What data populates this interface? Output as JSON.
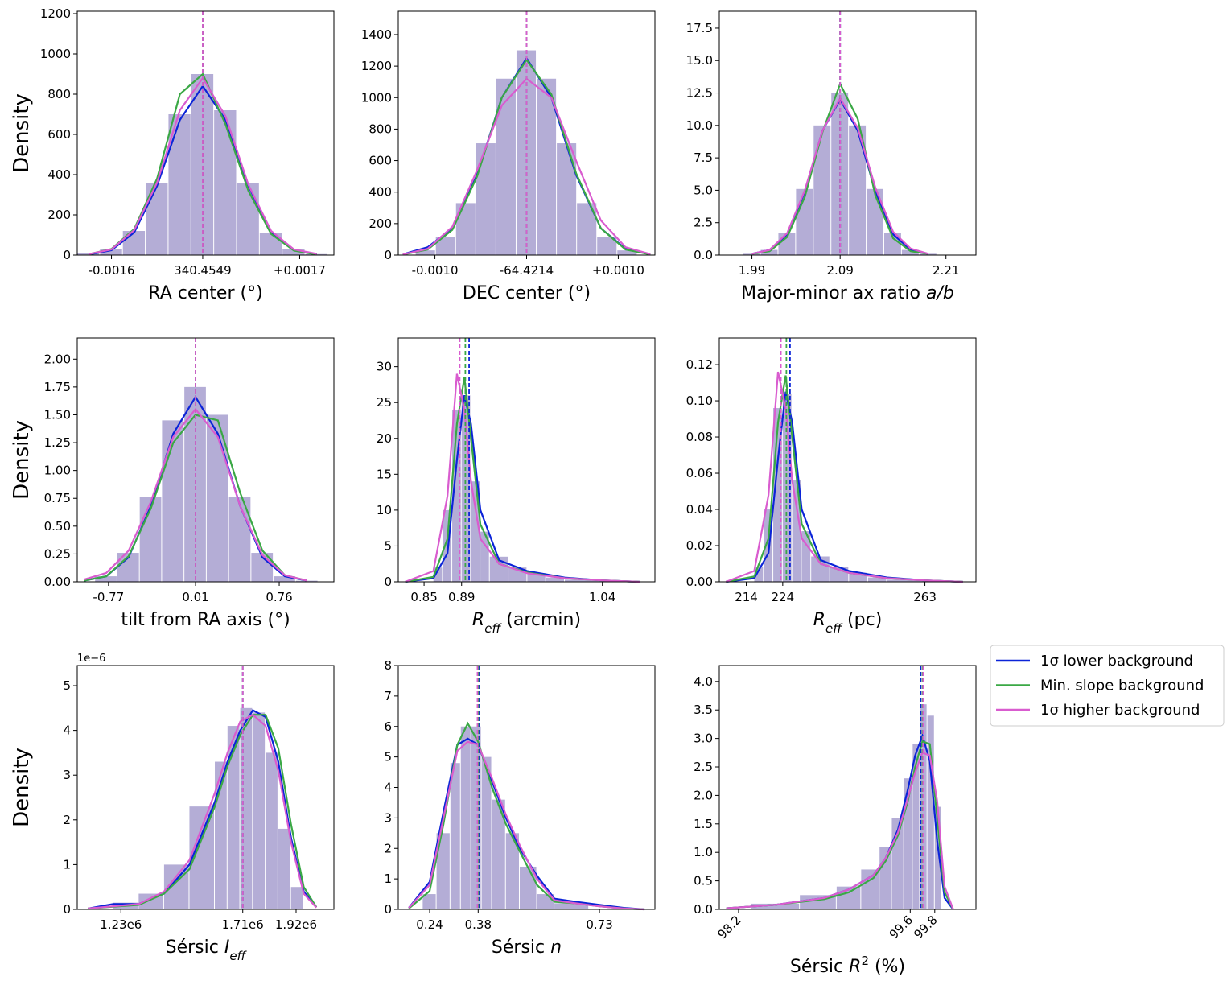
{
  "legend": {
    "position": "outside right",
    "entries": [
      {
        "name": "1σ lower background",
        "color": "#0b24d8"
      },
      {
        "name": "Min. slope background",
        "color": "#3aa845"
      },
      {
        "name": "1σ higher background",
        "color": "#d95ccf"
      }
    ]
  },
  "hist_color": "#a79fcf",
  "chart_data": [
    {
      "type": "histogram_kde",
      "ylabel": "Density",
      "xlabel": [
        {
          "text": "RA center (°)"
        }
      ],
      "xlim": [
        340.4527,
        340.4572
      ],
      "xticks": [
        {
          "value": 340.4533,
          "label": "-0.0016"
        },
        340.4549,
        {
          "value": 340.4566,
          "label": "+0.0017"
        }
      ],
      "ylim": [
        0,
        1212
      ],
      "yticks": [
        0,
        200,
        400,
        600,
        800,
        1000,
        1200
      ],
      "x": [
        340.4529,
        340.4533,
        340.4537,
        340.4541,
        340.4545,
        340.4549,
        340.4553,
        340.4557,
        340.4561,
        340.4565,
        340.4569
      ],
      "kde": [
        [
          3,
          24,
          113,
          344,
          672,
          840,
          672,
          344,
          113,
          24,
          3
        ],
        [
          4,
          30,
          130,
          380,
          800,
          900,
          650,
          320,
          105,
          22,
          3
        ],
        [
          5,
          28,
          125,
          360,
          720,
          880,
          690,
          350,
          120,
          28,
          6
        ]
      ],
      "medians": [
        340.4549,
        340.4549,
        340.4549
      ],
      "hist": {
        "bins": [
          340.4527,
          340.4531,
          340.4535,
          340.4539,
          340.4543,
          340.4547,
          340.4551,
          340.4555,
          340.4559,
          340.4563,
          340.4567,
          340.4571
        ],
        "counts": [
          10,
          30,
          120,
          360,
          700,
          900,
          720,
          360,
          110,
          30,
          5
        ]
      }
    },
    {
      "type": "histogram_kde",
      "xlabel": [
        {
          "text": "DEC center (°)"
        }
      ],
      "xlim": [
        -64.4228,
        -64.42
      ],
      "xticks": [
        {
          "value": -64.4224,
          "label": "-0.0010"
        },
        -64.4214,
        {
          "value": -64.4204,
          "label": "+0.0010"
        }
      ],
      "ylim": [
        0,
        1548
      ],
      "yticks": [
        0,
        200,
        400,
        600,
        800,
        1000,
        1200,
        1400
      ],
      "x": [
        -64.42275,
        -64.42248,
        -64.42221,
        -64.42194,
        -64.42167,
        -64.4214,
        -64.42113,
        -64.42086,
        -64.42059,
        -64.42032,
        -64.42005
      ],
      "kde": [
        [
          5,
          50,
          170,
          510,
          1000,
          1250,
          1000,
          510,
          170,
          40,
          5
        ],
        [
          3,
          35,
          160,
          500,
          1000,
          1240,
          1020,
          520,
          170,
          35,
          4
        ],
        [
          4,
          40,
          180,
          540,
          950,
          1120,
          1000,
          600,
          220,
          50,
          6
        ]
      ],
      "medians": [
        -64.4214,
        -64.4214,
        -64.4214
      ],
      "hist": {
        "bins": [
          -64.42261,
          -64.42239,
          -64.42217,
          -64.42195,
          -64.42173,
          -64.42151,
          -64.42129,
          -64.42107,
          -64.42085,
          -64.42063,
          -64.42041,
          -64.42019
        ],
        "counts": [
          30,
          115,
          330,
          710,
          1120,
          1300,
          1120,
          710,
          330,
          115,
          30
        ]
      }
    },
    {
      "type": "histogram_kde",
      "xlabel": [
        {
          "text": "Major-minor ax ratio "
        },
        {
          "text": "a/b",
          "style": "italic"
        }
      ],
      "xlim": [
        1.953,
        2.244
      ],
      "xticks": [
        1.99,
        2.09,
        2.21
      ],
      "ylim": [
        0,
        18.8
      ],
      "yticks": [
        {
          "value": 0,
          "label": "0.0"
        },
        2.5,
        {
          "value": 5,
          "label": "5.0"
        },
        7.5,
        {
          "value": 10,
          "label": "10.0"
        },
        12.5,
        {
          "value": 15,
          "label": "15.0"
        },
        17.5
      ],
      "x": [
        1.99,
        2.01,
        2.03,
        2.05,
        2.07,
        2.09,
        2.11,
        2.13,
        2.15,
        2.17,
        2.19
      ],
      "kde": [
        [
          0.1,
          0.4,
          1.6,
          4.9,
          9.6,
          12,
          9.6,
          4.9,
          1.6,
          0.4,
          0.1
        ],
        [
          0.1,
          0.3,
          1.4,
          4.5,
          9.5,
          13.2,
          10.5,
          4.6,
          1.3,
          0.3,
          0.1
        ],
        [
          0.1,
          0.4,
          1.7,
          5,
          9.6,
          12.1,
          9.8,
          5.2,
          1.8,
          0.5,
          0.1
        ]
      ],
      "medians": [
        2.09,
        2.09,
        2.09
      ],
      "hist": {
        "bins": [
          1.98,
          2.0,
          2.02,
          2.04,
          2.06,
          2.08,
          2.1,
          2.12,
          2.14,
          2.16,
          2.18,
          2.2
        ],
        "counts": [
          0.1,
          0.4,
          1.7,
          5.1,
          10,
          12.5,
          10,
          5.1,
          1.7,
          0.4,
          0.1
        ]
      }
    },
    {
      "type": "histogram_kde",
      "ylabel": "Density",
      "xlabel": [
        {
          "text": "tilt from RA axis (°)"
        }
      ],
      "xlim": [
        -1.05,
        1.25
      ],
      "xticks": [
        -0.77,
        0.01,
        0.76
      ],
      "ylim": [
        0,
        2.19
      ],
      "yticks": [
        {
          "value": 0,
          "label": "0.00"
        },
        0.25,
        {
          "value": 0.5,
          "label": "0.50"
        },
        0.75,
        {
          "value": 1,
          "label": "1.00"
        },
        1.25,
        {
          "value": 1.5,
          "label": "1.50"
        },
        1.75,
        {
          "value": 2,
          "label": "2.00"
        }
      ],
      "x": [
        -0.99,
        -0.79,
        -0.59,
        -0.39,
        -0.19,
        0.01,
        0.21,
        0.41,
        0.61,
        0.81,
        1.01
      ],
      "kde": [
        [
          0.01,
          0.05,
          0.22,
          0.68,
          1.33,
          1.66,
          1.33,
          0.68,
          0.22,
          0.05,
          0.01
        ],
        [
          0.01,
          0.05,
          0.23,
          0.66,
          1.25,
          1.5,
          1.45,
          0.8,
          0.28,
          0.06,
          0.01
        ],
        [
          0.02,
          0.08,
          0.28,
          0.72,
          1.3,
          1.55,
          1.3,
          0.68,
          0.24,
          0.06,
          0.01
        ]
      ],
      "medians": [
        0.01,
        0.01,
        0.01
      ],
      "hist": {
        "bins": [
          -0.89,
          -0.69,
          -0.49,
          -0.29,
          -0.09,
          0.11,
          0.31,
          0.51,
          0.71,
          0.91,
          1.11
        ],
        "counts": [
          0.05,
          0.26,
          0.76,
          1.45,
          1.75,
          1.5,
          0.76,
          0.26,
          0.05,
          0.01
        ]
      }
    },
    {
      "type": "histogram_kde",
      "xlabel": [
        {
          "text": "R",
          "style": "italic"
        },
        {
          "text": "eff",
          "style": "sub"
        },
        {
          "text": " (arcmin)"
        }
      ],
      "xlim": [
        0.8225,
        1.096
      ],
      "xticks": [
        0.85,
        0.89,
        1.04
      ],
      "ylim": [
        0,
        34
      ],
      "yticks": [
        0,
        5,
        10,
        15,
        20,
        25,
        30
      ],
      "x": [
        0.83,
        0.86,
        0.875,
        0.885,
        0.893,
        0.9,
        0.91,
        0.93,
        0.96,
        1.0,
        1.04,
        1.08
      ],
      "kde": [
        [
          0,
          0.5,
          4,
          17,
          26,
          22,
          10,
          3,
          1.5,
          0.6,
          0.2,
          0
        ],
        [
          0,
          0.7,
          6,
          22,
          28.5,
          20,
          8,
          2.5,
          1.3,
          0.5,
          0.2,
          0
        ],
        [
          0,
          1.5,
          12,
          29,
          24,
          14,
          6,
          2.5,
          1.2,
          0.5,
          0.2,
          0
        ]
      ],
      "medians": [
        0.898,
        0.894,
        0.888
      ],
      "hist": {
        "bins": [
          0.86,
          0.87,
          0.88,
          0.89,
          0.9,
          0.91,
          0.92,
          0.94,
          0.96,
          0.98,
          1.0,
          1.04
        ],
        "counts": [
          2,
          10,
          24,
          26,
          14,
          7,
          3.5,
          2,
          1.2,
          0.6,
          0.3
        ]
      }
    },
    {
      "type": "histogram_kde",
      "xlabel": [
        {
          "text": "R",
          "style": "italic"
        },
        {
          "text": "eff",
          "style": "sub"
        },
        {
          "text": " (pc)"
        }
      ],
      "xlim": [
        206.6,
        277
      ],
      "xticks": [
        214,
        224,
        263
      ],
      "ylim": [
        0,
        0.1347
      ],
      "yticks": [
        {
          "value": 0,
          "label": "0.00"
        },
        0.02,
        0.04,
        0.06,
        0.08,
        {
          "value": 0.1,
          "label": "0.10"
        },
        0.12
      ],
      "x": [
        208.4,
        216.2,
        220.1,
        222.7,
        224.8,
        226.6,
        229.2,
        234.4,
        242.2,
        252.6,
        263,
        273.4
      ],
      "kde": [
        [
          0,
          0.002,
          0.016,
          0.068,
          0.105,
          0.088,
          0.04,
          0.012,
          0.006,
          0.0024,
          0.0008,
          0
        ],
        [
          0,
          0.003,
          0.024,
          0.088,
          0.114,
          0.08,
          0.032,
          0.01,
          0.005,
          0.002,
          0.0008,
          0
        ],
        [
          0,
          0.006,
          0.048,
          0.116,
          0.096,
          0.056,
          0.024,
          0.01,
          0.005,
          0.002,
          0.0008,
          0
        ]
      ],
      "medians": [
        226,
        225,
        223.5
      ],
      "hist": {
        "bins": [
          216.2,
          218.8,
          221.4,
          224,
          226.6,
          229.2,
          231.8,
          237,
          242.2,
          247.4,
          252.6,
          263
        ],
        "counts": [
          0.008,
          0.04,
          0.096,
          0.104,
          0.056,
          0.028,
          0.014,
          0.008,
          0.005,
          0.0024,
          0.0012
        ]
      }
    },
    {
      "type": "histogram_kde",
      "ylabel": "Density",
      "y_offset": "1e−6",
      "xlabel": [
        {
          "text": "Sérsic "
        },
        {
          "text": "I",
          "style": "italic"
        },
        {
          "text": "eff",
          "style": "sub"
        }
      ],
      "xlim": [
        1058000,
        2069000
      ],
      "xticks": [
        {
          "value": 1230000,
          "label": "1.23e6"
        },
        {
          "value": 1710000,
          "label": "1.71e6"
        },
        {
          "value": 1920000,
          "label": "1.92e6"
        }
      ],
      "ylim": [
        0,
        5.45
      ],
      "yticks": [
        0,
        1,
        2,
        3,
        4,
        5
      ],
      "x": [
        1100000,
        1200000,
        1300000,
        1400000,
        1500000,
        1600000,
        1650000,
        1700000,
        1750000,
        1800000,
        1850000,
        1900000,
        1950000,
        2000000
      ],
      "kde": [
        [
          0.02,
          0.12,
          0.12,
          0.35,
          1.0,
          2.4,
          3.3,
          4.0,
          4.45,
          4.3,
          3.3,
          1.6,
          0.4,
          0.05
        ],
        [
          0.02,
          0.06,
          0.1,
          0.35,
          0.9,
          2.3,
          3.2,
          3.9,
          4.35,
          4.35,
          3.6,
          1.9,
          0.5,
          0.05
        ],
        [
          0.02,
          0.07,
          0.12,
          0.4,
          1.1,
          2.6,
          3.5,
          4.2,
          4.35,
          4.1,
          3.1,
          1.5,
          0.35,
          0.04
        ]
      ],
      "medians": [
        1710000,
        1710000,
        1710000
      ],
      "hist": {
        "bins": [
          1200000,
          1300000,
          1400000,
          1500000,
          1600000,
          1650000,
          1700000,
          1750000,
          1800000,
          1850000,
          1900000,
          1950000
        ],
        "counts": [
          0.15,
          0.35,
          1.0,
          2.3,
          3.3,
          4.1,
          4.5,
          4.4,
          3.5,
          1.8,
          0.5
        ]
      }
    },
    {
      "type": "histogram_kde",
      "xlabel": [
        {
          "text": "Sérsic "
        },
        {
          "text": "n",
          "style": "italic"
        }
      ],
      "xlim": [
        0.1495,
        0.89
      ],
      "xticks": [
        0.24,
        0.38,
        0.73
      ],
      "ylim": [
        0,
        8
      ],
      "yticks": [
        0,
        1,
        2,
        3,
        4,
        5,
        6,
        7,
        8
      ],
      "x": [
        0.18,
        0.24,
        0.28,
        0.32,
        0.35,
        0.38,
        0.42,
        0.46,
        0.5,
        0.55,
        0.6,
        0.66,
        0.73,
        0.8,
        0.86
      ],
      "kde": [
        [
          0.05,
          0.9,
          3.2,
          5.4,
          5.6,
          5.4,
          4.2,
          3.0,
          2.0,
          1.1,
          0.35,
          0.25,
          0.15,
          0.05,
          0
        ],
        [
          0.03,
          0.6,
          2.8,
          5.4,
          6.1,
          5.5,
          4.0,
          2.8,
          1.9,
          0.8,
          0.25,
          0.2,
          0.1,
          0.03,
          0
        ],
        [
          0.05,
          0.8,
          3.0,
          5.2,
          5.5,
          5.4,
          4.3,
          3.1,
          2.1,
          1.0,
          0.3,
          0.2,
          0.1,
          0.03,
          0
        ]
      ],
      "medians": [
        0.383,
        0.38,
        0.378
      ],
      "hist": {
        "bins": [
          0.22,
          0.26,
          0.3,
          0.33,
          0.36,
          0.39,
          0.42,
          0.46,
          0.5,
          0.55,
          0.6,
          0.7
        ],
        "counts": [
          0.5,
          2.5,
          4.8,
          6,
          6,
          5,
          3.6,
          2.5,
          1.4,
          0.5,
          0.2
        ]
      }
    },
    {
      "type": "histogram_kde",
      "xtick_rotation": 45,
      "xlabel": [
        {
          "text": "Sérsic "
        },
        {
          "text": "R",
          "style": "italic"
        },
        {
          "text": "2",
          "style": "sup"
        },
        {
          "text": " (%)"
        }
      ],
      "xlim": [
        98.043,
        100.136
      ],
      "xticks": [
        98.2,
        99.6,
        99.8
      ],
      "ylim": [
        0,
        4.28
      ],
      "yticks": [
        {
          "value": 0,
          "label": "0.0"
        },
        0.5,
        {
          "value": 1,
          "label": "1.0"
        },
        1.5,
        {
          "value": 2,
          "label": "2.0"
        },
        2.5,
        {
          "value": 3,
          "label": "3.0"
        },
        3.5,
        {
          "value": 4,
          "label": "4.0"
        }
      ],
      "x": [
        98.1,
        98.5,
        98.9,
        99.1,
        99.3,
        99.4,
        99.5,
        99.58,
        99.64,
        99.7,
        99.76,
        99.82,
        99.88,
        99.95
      ],
      "kde": [
        [
          0.02,
          0.08,
          0.2,
          0.35,
          0.6,
          0.9,
          1.4,
          2.1,
          2.7,
          3.05,
          2.6,
          1.2,
          0.2,
          0
        ],
        [
          0.02,
          0.08,
          0.18,
          0.3,
          0.55,
          0.85,
          1.3,
          1.9,
          2.5,
          2.95,
          2.9,
          1.6,
          0.3,
          0
        ],
        [
          0.02,
          0.08,
          0.2,
          0.35,
          0.6,
          0.9,
          1.35,
          1.95,
          2.4,
          2.75,
          2.7,
          1.9,
          0.4,
          0
        ]
      ],
      "medians": [
        99.685,
        99.7,
        99.705
      ],
      "hist": {
        "bins": [
          98.3,
          98.7,
          99.0,
          99.2,
          99.35,
          99.45,
          99.55,
          99.62,
          99.68,
          99.74,
          99.8,
          99.86
        ],
        "counts": [
          0.1,
          0.25,
          0.4,
          0.7,
          1.1,
          1.6,
          2.3,
          2.9,
          3.6,
          3.4,
          1.8
        ]
      }
    }
  ]
}
